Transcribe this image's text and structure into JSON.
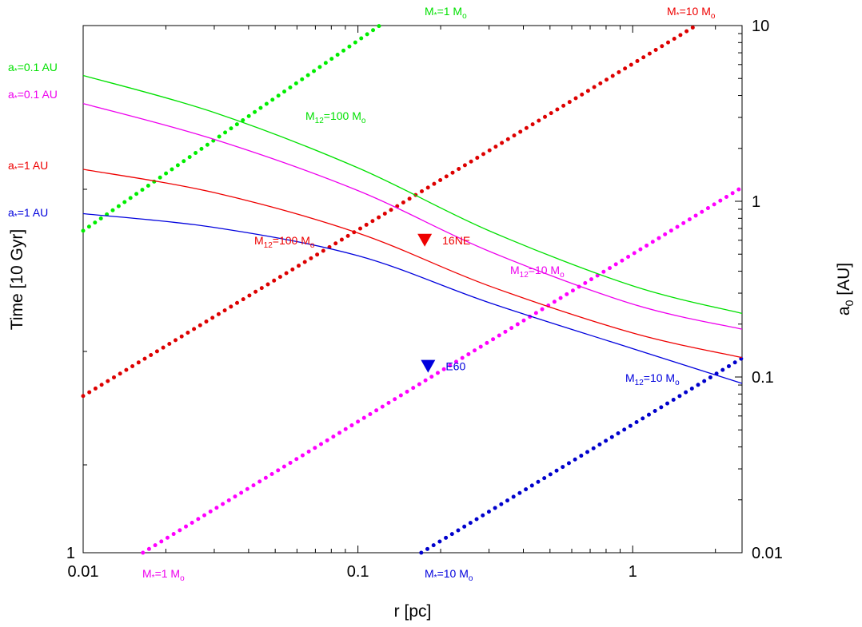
{
  "chart_data": {
    "type": "line",
    "xlabel": "r [pc]",
    "ylabel_left": "Time [10 Gyr]",
    "ylabel_right": "a0 [AU]",
    "x_scale": "log",
    "xlim": [
      0.01,
      2.5
    ],
    "x_ticks": [
      {
        "value": 0.01,
        "label": "0.01"
      },
      {
        "value": 0.1,
        "label": "0.1"
      },
      {
        "value": 1,
        "label": "1"
      }
    ],
    "left_y_ticks": [
      {
        "value": 1,
        "label": "1"
      }
    ],
    "right_y_scale": "log",
    "right_ylim": [
      0.01,
      10
    ],
    "right_y_ticks": [
      {
        "value": 0.01,
        "label": "0.01"
      },
      {
        "value": 0.1,
        "label": "0.1"
      },
      {
        "value": 1,
        "label": "1"
      },
      {
        "value": 10,
        "label": "10"
      }
    ],
    "grid": false,
    "solid_curves": [
      {
        "color": "#00e000",
        "x": [
          0.01,
          0.03,
          0.1,
          0.3,
          1,
          2.5
        ],
        "y_right": [
          5.2,
          3.2,
          1.55,
          0.68,
          0.33,
          0.23
        ]
      },
      {
        "color": "#ee00ee",
        "x": [
          0.01,
          0.03,
          0.1,
          0.3,
          1,
          2.5
        ],
        "y_right": [
          3.6,
          2.25,
          1.15,
          0.52,
          0.26,
          0.187
        ]
      },
      {
        "color": "#ee0000",
        "x": [
          0.01,
          0.03,
          0.1,
          0.3,
          1,
          2.5
        ],
        "y_right": [
          1.52,
          1.12,
          0.66,
          0.33,
          0.178,
          0.129
        ]
      },
      {
        "color": "#0000dd",
        "x": [
          0.01,
          0.03,
          0.1,
          0.3,
          1,
          2.5
        ],
        "y_right": [
          0.85,
          0.71,
          0.49,
          0.265,
          0.145,
          0.092
        ]
      }
    ],
    "dotted_lines": [
      {
        "color": "#00ee00",
        "x": [
          0.01,
          0.12
        ],
        "y_right": [
          0.68,
          10
        ]
      },
      {
        "color": "#dd0000",
        "x": [
          0.01,
          1.7
        ],
        "y_right": [
          0.078,
          10
        ]
      },
      {
        "color": "#ff00ff",
        "x": [
          0.0165,
          2.5
        ],
        "y_right": [
          0.01,
          1.2
        ]
      },
      {
        "color": "#0000cc",
        "x": [
          0.17,
          2.5
        ],
        "y_right": [
          0.01,
          0.128
        ]
      }
    ],
    "markers": [
      {
        "label": "16NE",
        "color": "#ee0000",
        "x": 0.175,
        "y_right": 0.6
      },
      {
        "label": "E60",
        "color": "#0000dd",
        "x": 0.18,
        "y_right": 0.115
      }
    ],
    "annotations": [
      {
        "text": "a*=0.1 AU",
        "color": "#00e000"
      },
      {
        "text": "a*=0.1 AU",
        "color": "#ee00ee"
      },
      {
        "text": "a*=1 AU",
        "color": "#ee0000"
      },
      {
        "text": "a*=1 AU",
        "color": "#0000dd"
      },
      {
        "text": "M12=100 Mo",
        "color": "#00e000"
      },
      {
        "text": "M12=100 Mo",
        "color": "#ee0000"
      },
      {
        "text": "M12=10 Mo",
        "color": "#ee00ee"
      },
      {
        "text": "M12=10 Mo",
        "color": "#0000dd"
      },
      {
        "text": "M*=1 Mo",
        "color": "#00e000"
      },
      {
        "text": "M*=10 Mo",
        "color": "#ee0000"
      },
      {
        "text": "M*=1 Mo",
        "color": "#ee00ee"
      },
      {
        "text": "M*=10 Mo",
        "color": "#0000dd"
      }
    ]
  }
}
